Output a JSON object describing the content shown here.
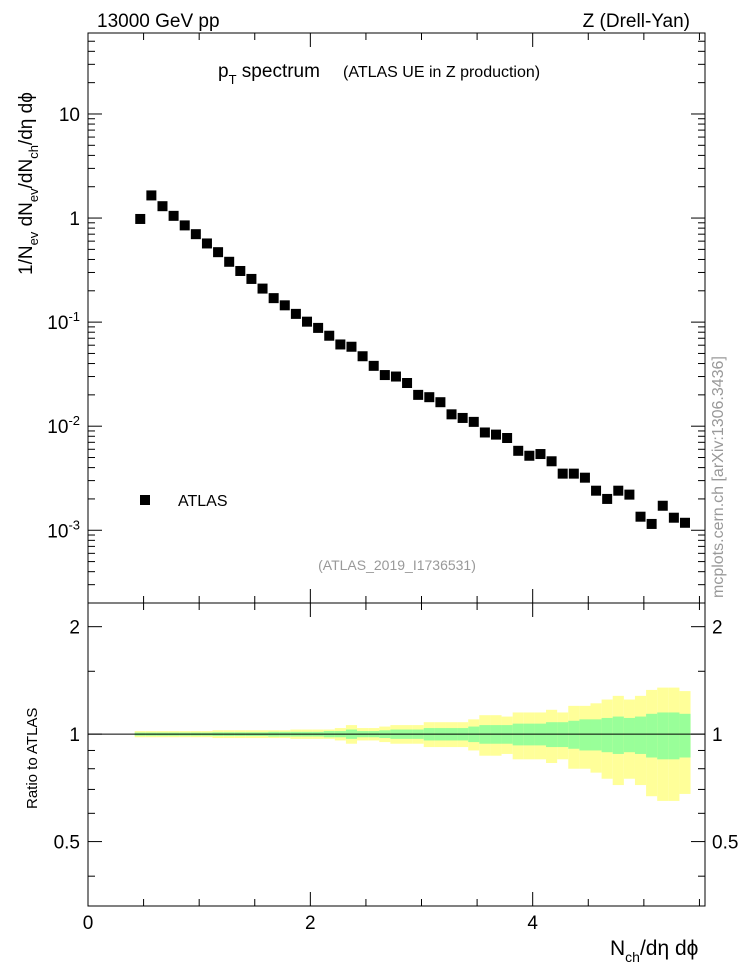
{
  "header": {
    "left": "13000 GeV pp",
    "right": "Z (Drell-Yan)"
  },
  "title": {
    "main": "p",
    "sub": "T",
    "rest": " spectrum",
    "note": "(ATLAS UE in Z production)"
  },
  "analysis_id": "(ATLAS_2019_I1736531)",
  "watermark": "mcplots.cern.ch [arXiv:1306.3436]",
  "colors": {
    "outer_band": "#ffff99",
    "inner_band": "#99ff99",
    "markers": "#000000"
  },
  "chart_data": [
    {
      "type": "scatter",
      "panel": "main",
      "yscale": "log",
      "ylabel": "1/N_ev dN_ev/dN_ch/dη dϕ",
      "ylim": [
        0.0002,
        60
      ],
      "xlim": [
        0,
        5.55
      ],
      "ytick_labels": [
        "10",
        "1",
        "10^-1",
        "10^-2",
        "10^-3"
      ],
      "legend": {
        "position": "bottom-left",
        "label": "ATLAS"
      },
      "series": [
        {
          "name": "ATLAS",
          "x": [
            0.47,
            0.57,
            0.67,
            0.77,
            0.87,
            0.97,
            1.07,
            1.17,
            1.27,
            1.37,
            1.47,
            1.57,
            1.67,
            1.77,
            1.87,
            1.97,
            2.07,
            2.17,
            2.27,
            2.37,
            2.47,
            2.57,
            2.67,
            2.77,
            2.87,
            2.97,
            3.07,
            3.17,
            3.27,
            3.37,
            3.47,
            3.57,
            3.67,
            3.77,
            3.87,
            3.97,
            4.07,
            4.17,
            4.27,
            4.37,
            4.47,
            4.57,
            4.67,
            4.77,
            4.87,
            4.97,
            5.07,
            5.17,
            5.27,
            5.37
          ],
          "y": [
            0.98,
            1.65,
            1.3,
            1.05,
            0.85,
            0.7,
            0.57,
            0.47,
            0.38,
            0.31,
            0.26,
            0.21,
            0.17,
            0.145,
            0.12,
            0.101,
            0.088,
            0.074,
            0.061,
            0.058,
            0.047,
            0.038,
            0.031,
            0.03,
            0.026,
            0.02,
            0.019,
            0.017,
            0.013,
            0.012,
            0.011,
            0.0087,
            0.0083,
            0.0077,
            0.0058,
            0.0052,
            0.0054,
            0.0046,
            0.0035,
            0.0035,
            0.0032,
            0.0024,
            0.002,
            0.0024,
            0.0022,
            0.00135,
            0.00115,
            0.00172,
            0.00132,
            0.00118
          ]
        }
      ]
    },
    {
      "type": "area",
      "panel": "ratio",
      "ylabel": "Ratio to ATLAS",
      "xlabel": "N_ch/dη dϕ",
      "ylim": [
        0.33,
        2.33
      ],
      "xlim": [
        0,
        5.55
      ],
      "xtick_labels": [
        "0",
        "2",
        "4"
      ],
      "ytick_labels": [
        "2",
        "1",
        "0.5"
      ],
      "bands": [
        {
          "kind": "total-uncertainty",
          "x_edges": [
            0.42,
            0.52,
            0.62,
            0.72,
            0.82,
            0.92,
            1.02,
            1.12,
            1.22,
            1.32,
            1.42,
            1.52,
            1.62,
            1.72,
            1.82,
            1.92,
            2.02,
            2.12,
            2.22,
            2.32,
            2.42,
            2.52,
            2.62,
            2.72,
            2.82,
            2.92,
            3.02,
            3.12,
            3.22,
            3.32,
            3.42,
            3.52,
            3.62,
            3.72,
            3.82,
            3.92,
            4.02,
            4.12,
            4.22,
            4.32,
            4.42,
            4.52,
            4.62,
            4.72,
            4.82,
            4.92,
            5.02,
            5.12,
            5.22,
            5.32,
            5.42
          ],
          "rel_err": [
            0.02,
            0.02,
            0.02,
            0.02,
            0.02,
            0.02,
            0.02,
            0.025,
            0.025,
            0.025,
            0.025,
            0.025,
            0.025,
            0.025,
            0.03,
            0.03,
            0.03,
            0.03,
            0.04,
            0.06,
            0.04,
            0.04,
            0.05,
            0.06,
            0.06,
            0.06,
            0.08,
            0.08,
            0.08,
            0.08,
            0.1,
            0.13,
            0.13,
            0.12,
            0.15,
            0.15,
            0.15,
            0.17,
            0.15,
            0.2,
            0.2,
            0.22,
            0.25,
            0.28,
            0.25,
            0.28,
            0.33,
            0.35,
            0.35,
            0.32
          ]
        },
        {
          "kind": "statistical",
          "rel_err": [
            0.01,
            0.01,
            0.01,
            0.01,
            0.01,
            0.01,
            0.01,
            0.012,
            0.012,
            0.012,
            0.012,
            0.012,
            0.015,
            0.015,
            0.015,
            0.015,
            0.015,
            0.02,
            0.02,
            0.03,
            0.02,
            0.02,
            0.025,
            0.03,
            0.03,
            0.03,
            0.04,
            0.04,
            0.04,
            0.04,
            0.05,
            0.06,
            0.06,
            0.06,
            0.07,
            0.07,
            0.07,
            0.08,
            0.08,
            0.09,
            0.1,
            0.1,
            0.11,
            0.12,
            0.11,
            0.12,
            0.14,
            0.15,
            0.15,
            0.14
          ]
        }
      ],
      "reference_line": 1
    }
  ]
}
